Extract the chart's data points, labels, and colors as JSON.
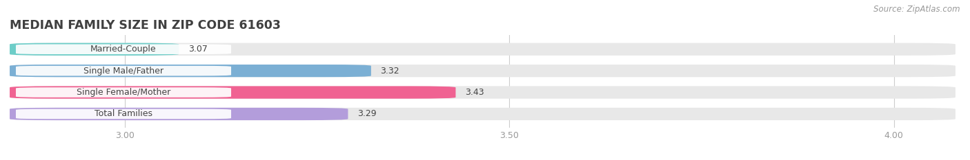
{
  "title": "MEDIAN FAMILY SIZE IN ZIP CODE 61603",
  "source": "Source: ZipAtlas.com",
  "categories": [
    "Married-Couple",
    "Single Male/Father",
    "Single Female/Mother",
    "Total Families"
  ],
  "values": [
    3.07,
    3.32,
    3.43,
    3.29
  ],
  "bar_colors": [
    "#6dcdc8",
    "#7bafd4",
    "#f06292",
    "#b39ddb"
  ],
  "bar_bg_color": "#e8e8e8",
  "xlim": [
    2.85,
    4.08
  ],
  "xticks": [
    3.0,
    3.5,
    4.0
  ],
  "xtick_labels": [
    "3.00",
    "3.50",
    "4.00"
  ],
  "background_color": "#ffffff",
  "title_fontsize": 12.5,
  "label_fontsize": 9.0,
  "value_fontsize": 9.0,
  "source_fontsize": 8.5,
  "bar_height": 0.58,
  "label_color": "#444444",
  "tick_color": "#999999",
  "source_color": "#999999",
  "grid_color": "#cccccc",
  "label_box_color": "#ffffff"
}
